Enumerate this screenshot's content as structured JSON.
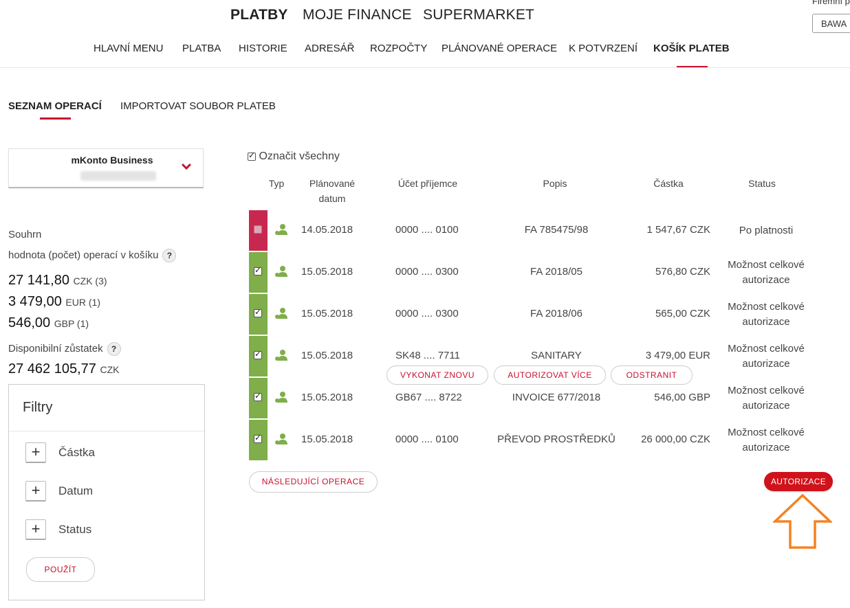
{
  "top_nav": [
    "PLATBY",
    "MOJE FINANCE",
    "SUPERMARKET"
  ],
  "corporate": {
    "label": "Firemní p",
    "value": "BAWA"
  },
  "sub_nav": [
    "HLAVNÍ MENU",
    "PLATBA",
    "HISTORIE",
    "ADRESÁŘ",
    "ROZPOČTY",
    "PLÁNOVANÉ OPERACE",
    "K POTVRZENÍ",
    "KOŠÍK PLATEB"
  ],
  "tabs": [
    "SEZNAM OPERACÍ",
    "IMPORTOVAT SOUBOR PLATEB"
  ],
  "account": {
    "name": "mKonto Business"
  },
  "summary": {
    "title": "Souhrn",
    "basket_label": "hodnota (počet) operací v košíku",
    "help": "?",
    "amounts": [
      {
        "value": "27 141,80",
        "currency": "CZK (3)"
      },
      {
        "value": "3 479,00",
        "currency": "EUR (1)"
      },
      {
        "value": "546,00",
        "currency": "GBP (1)"
      }
    ],
    "balance_label": "Disponibilní zůstatek",
    "balance_value": "27 462 105,77",
    "balance_currency": "CZK"
  },
  "filters": {
    "title": "Filtry",
    "items": [
      "Částka",
      "Datum",
      "Status"
    ],
    "plus": "+",
    "apply": "POUŽÍT"
  },
  "table": {
    "select_all": "Označit všechny",
    "headers": {
      "type": "Typ",
      "date_1": "Plánované",
      "date_2": "datum",
      "account": "Účet příjemce",
      "description": "Popis",
      "amount": "Částka",
      "status": "Status"
    },
    "rows": [
      {
        "date": "14.05.2018",
        "account": "0000 .... 0100",
        "description": "FA 785475/98",
        "amount": "1 547,67 CZK",
        "status_1": "Po platnosti",
        "status_2": "",
        "color": "#c8284f",
        "checked": false
      },
      {
        "date": "15.05.2018",
        "account": "0000 .... 0300",
        "description": "FA 2018/05",
        "amount": "576,80 CZK",
        "status_1": "Možnost celkové",
        "status_2": "autorizace",
        "color": "#7fae4a",
        "checked": true
      },
      {
        "date": "15.05.2018",
        "account": "0000 .... 0300",
        "description": "FA 2018/06",
        "amount": "565,00 CZK",
        "status_1": "Možnost celkové",
        "status_2": "autorizace",
        "color": "#7fae4a",
        "checked": true
      },
      {
        "date": "15.05.2018",
        "account": "SK48 .... 7711",
        "description": "SANITARY",
        "amount": "3 479,00 EUR",
        "status_1": "Možnost celkové",
        "status_2": "autorizace",
        "color": "#7fae4a",
        "checked": true
      },
      {
        "date": "15.05.2018",
        "account": "GB67 .... 8722",
        "description": "INVOICE 677/2018",
        "amount": "546,00 GBP",
        "status_1": "Možnost celkové",
        "status_2": "autorizace",
        "color": "#7fae4a",
        "checked": true
      },
      {
        "date": "15.05.2018",
        "account": "0000 .... 0100",
        "description": "PŘEVOD PROSTŘEDKŮ",
        "amount": "26 000,00 CZK",
        "status_1": "Možnost celkové",
        "status_2": "autorizace",
        "color": "#7fae4a",
        "checked": true
      }
    ],
    "row_actions": [
      "VYKONAT ZNOVU",
      "AUTORIZOVAT VÍCE",
      "ODSTRANIT"
    ],
    "next_label": "NÁSLEDUJÍCÍ OPERACE",
    "authorize_label": "AUTORIZACE"
  },
  "colors": {
    "accent": "#c8102e",
    "ok_stripe": "#7fae4a",
    "expired_stripe": "#c8284f",
    "arrow": "#f58220"
  },
  "icons": {
    "payment_type": "user-payment-icon",
    "chevron": "chevron-down-icon",
    "arrow": "arrow-up-outline-icon"
  }
}
